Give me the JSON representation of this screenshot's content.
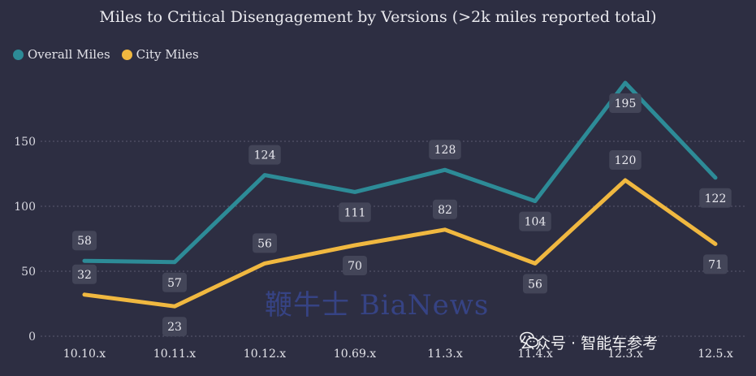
{
  "chart_data": {
    "type": "line",
    "title": "Miles to Critical Disengagement by Versions (>2k miles reported total)",
    "categories": [
      "10.10.x",
      "10.11.x",
      "10.12.x",
      "10.69.x",
      "11.3.x",
      "11.4.x",
      "12.3.x",
      "12.5.x"
    ],
    "series": [
      {
        "name": "Overall Miles",
        "values": [
          58,
          57,
          124,
          111,
          128,
          104,
          195,
          122
        ],
        "color": "#2d8b97"
      },
      {
        "name": "City Miles",
        "values": [
          32,
          23,
          56,
          70,
          82,
          56,
          120,
          71
        ],
        "color": "#f0b840"
      }
    ],
    "ylim": [
      0,
      200
    ],
    "yticks": [
      0,
      50,
      100,
      150
    ],
    "grid": true,
    "legend": "top-left",
    "xlabel": "",
    "ylabel": ""
  },
  "watermark": "鞭牛士 BiaNews",
  "wechat": {
    "text": "公众号 · 智能车参考",
    "icon": "wechat-icon"
  },
  "colors": {
    "background": "#2d2e42",
    "grid": "#5a5b70",
    "label_box": "#45475a"
  }
}
